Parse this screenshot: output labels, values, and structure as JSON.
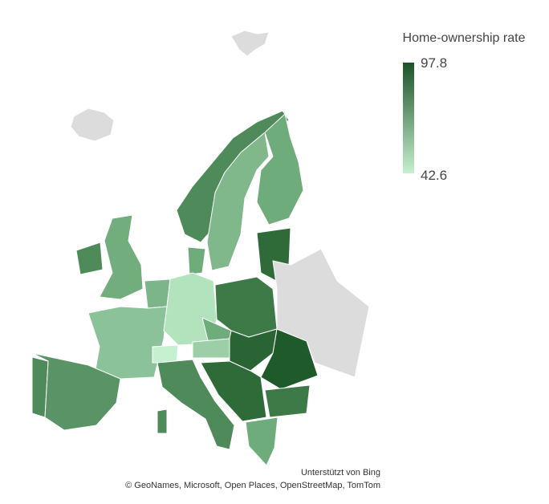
{
  "legend": {
    "title": "Home-ownership rate",
    "max": "97.8",
    "min": "42.6",
    "color_max": "#1d5227",
    "color_min": "#c6f0cf"
  },
  "attribution": {
    "provider": "Unterstützt von Bing",
    "sources": "© GeoNames, Microsoft, Open Places, OpenStreetMap, TomTom"
  }
}
